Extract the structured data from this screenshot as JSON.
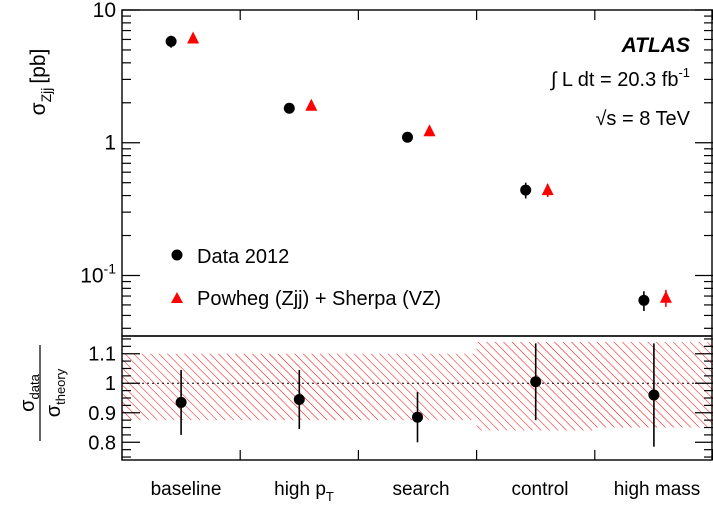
{
  "chart_data": [
    {
      "type": "scatter",
      "panel": "upper",
      "ylabel_main": "σ",
      "ylabel_sub": "Zjj",
      "ylabel_unit": "[pb]",
      "yscale": "log",
      "ylim": [
        0.035,
        10
      ],
      "ytick_labels": [
        {
          "value": 10,
          "base": "10",
          "exp": ""
        },
        {
          "value": 1,
          "base": "1",
          "exp": ""
        },
        {
          "value": 0.1,
          "base": "10",
          "exp": "-1"
        }
      ],
      "categories": [
        "baseline",
        "high p",
        "search",
        "control",
        "high mass"
      ],
      "category_subscripts": [
        "",
        "T",
        "",
        "",
        ""
      ],
      "series": [
        {
          "name": "Data 2012",
          "marker": "circle",
          "color": "#000000",
          "values": [
            5.8,
            1.82,
            1.1,
            0.44,
            0.065
          ],
          "errors": [
            0.6,
            0.12,
            0.06,
            0.06,
            0.011
          ]
        },
        {
          "name": "Powheg (Zjj) + Sherpa (VZ)",
          "marker": "triangle",
          "color": "#ff0000",
          "values": [
            6.1,
            1.9,
            1.22,
            0.44,
            0.068
          ],
          "errors": [
            0.4,
            0.15,
            0.1,
            0.05,
            0.01
          ]
        }
      ],
      "legend_position": "bottom-left",
      "annotation": {
        "experiment": "ATLAS",
        "lumi_prefix": "∫ L dt = 20.3 fb",
        "lumi_exp": "-1",
        "energy_sqrt": "√",
        "energy_text": "s = 8 TeV"
      }
    },
    {
      "type": "scatter",
      "panel": "ratio",
      "ylabel_num": "σ",
      "ylabel_num_sub": "data",
      "ylabel_den": "σ",
      "ylabel_den_sub": "theory",
      "ylim": [
        0.74,
        1.16
      ],
      "ytick_labels": [
        {
          "value": 1.1,
          "label": "1.1"
        },
        {
          "value": 1.0,
          "label": "1"
        },
        {
          "value": 0.9,
          "label": "0.9"
        },
        {
          "value": 0.8,
          "label": "0.8"
        }
      ],
      "reference_line": 1.0,
      "categories": [
        "baseline",
        "high p",
        "search",
        "control",
        "high mass"
      ],
      "series": [
        {
          "name": "data/theory",
          "marker": "circle",
          "color": "#000000",
          "values": [
            0.935,
            0.945,
            0.885,
            1.005,
            0.96
          ],
          "errors": [
            0.11,
            0.1,
            0.085,
            0.13,
            0.175
          ]
        }
      ],
      "theory_band": {
        "color": "#ff0000",
        "regions": [
          {
            "from": 0,
            "to": 3,
            "low": 0.875,
            "high": 1.1
          },
          {
            "from": 3,
            "to": 4,
            "low": 0.84,
            "high": 1.14
          },
          {
            "from": 4,
            "to": 5,
            "low": 0.85,
            "high": 1.14
          }
        ]
      }
    }
  ]
}
